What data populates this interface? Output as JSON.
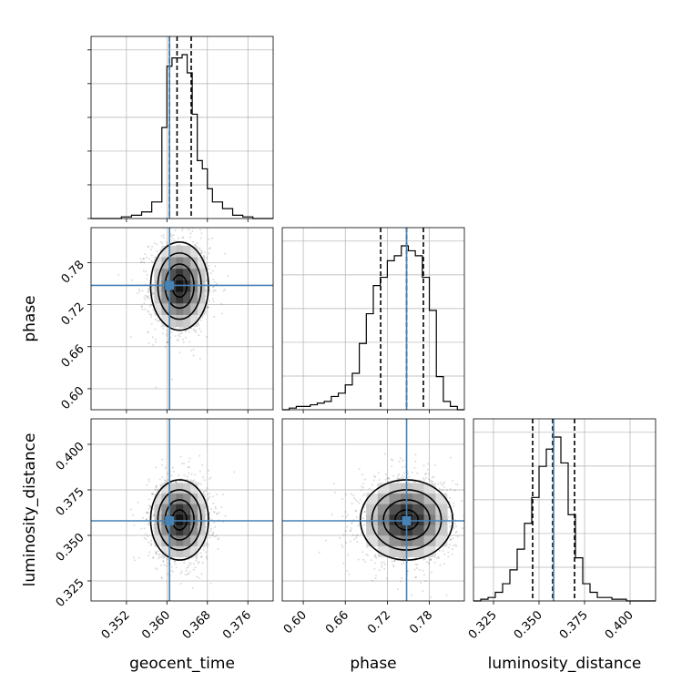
{
  "chart_data": {
    "type": "corner",
    "truth_color": "#4682b4",
    "parameters": [
      {
        "name": "geocent_time",
        "label": "geocent_time",
        "range": [
          0.345,
          0.381
        ],
        "ticks": [
          "0.352",
          "0.360",
          "0.368",
          "0.376"
        ],
        "truth": 0.3605,
        "quantiles": [
          0.3605,
          0.362,
          0.3648
        ],
        "hist": {
          "bins": [
            0.345,
            0.347,
            0.349,
            0.351,
            0.353,
            0.355,
            0.357,
            0.359,
            0.36,
            0.361,
            0.362,
            0.363,
            0.364,
            0.365,
            0.366,
            0.367,
            0.368,
            0.369,
            0.371,
            0.373,
            0.375,
            0.377,
            0.379,
            0.381
          ],
          "counts": [
            0,
            0,
            0,
            0.01,
            0.02,
            0.04,
            0.1,
            0.55,
            0.92,
            0.97,
            0.97,
            0.99,
            0.88,
            0.63,
            0.35,
            0.3,
            0.18,
            0.1,
            0.06,
            0.02,
            0.01,
            0,
            0
          ]
        }
      },
      {
        "name": "phase",
        "label": "phase",
        "range": [
          0.57,
          0.83
        ],
        "ticks": [
          "0.60",
          "0.66",
          "0.72",
          "0.78"
        ],
        "truth": 0.7475,
        "quantiles": [
          0.7105,
          0.7475,
          0.7715
        ],
        "hist": {
          "bins": [
            0.57,
            0.58,
            0.59,
            0.6,
            0.61,
            0.62,
            0.63,
            0.64,
            0.65,
            0.66,
            0.67,
            0.68,
            0.69,
            0.7,
            0.71,
            0.72,
            0.73,
            0.74,
            0.75,
            0.76,
            0.77,
            0.78,
            0.79,
            0.8,
            0.81,
            0.82,
            0.83
          ],
          "counts": [
            0,
            0.01,
            0.02,
            0.02,
            0.03,
            0.04,
            0.05,
            0.08,
            0.1,
            0.15,
            0.22,
            0.4,
            0.58,
            0.75,
            0.8,
            0.9,
            0.93,
            0.99,
            0.96,
            0.93,
            0.8,
            0.6,
            0.2,
            0.05,
            0.02,
            0
          ]
        }
      },
      {
        "name": "luminosity_distance",
        "label": "luminosity_distance",
        "range": [
          0.314,
          0.414
        ],
        "ticks": [
          "0.325",
          "0.350",
          "0.375",
          "0.400"
        ],
        "truth": 0.358,
        "quantiles": [
          0.3465,
          0.3575,
          0.3695
        ],
        "hist": {
          "bins": [
            0.314,
            0.318,
            0.322,
            0.326,
            0.33,
            0.334,
            0.338,
            0.342,
            0.346,
            0.35,
            0.354,
            0.358,
            0.362,
            0.366,
            0.37,
            0.374,
            0.378,
            0.382,
            0.386,
            0.39,
            0.394,
            0.398,
            0.402,
            0.406,
            0.41,
            0.414
          ],
          "counts": [
            0,
            0.01,
            0.02,
            0.05,
            0.1,
            0.18,
            0.3,
            0.45,
            0.6,
            0.78,
            0.88,
            0.95,
            0.8,
            0.5,
            0.25,
            0.1,
            0.05,
            0.02,
            0.02,
            0.01,
            0.01,
            0,
            0,
            0,
            0
          ]
        }
      }
    ],
    "posterior_2d": [
      {
        "x": "geocent_time",
        "y": "phase",
        "center": [
          0.3625,
          0.7465
        ],
        "sd": [
          0.0026,
          0.03
        ],
        "rho": 0
      },
      {
        "x": "geocent_time",
        "y": "luminosity_distance",
        "center": [
          0.3625,
          0.3585
        ],
        "sd": [
          0.0026,
          0.0105
        ],
        "rho": 0
      },
      {
        "x": "phase",
        "y": "luminosity_distance",
        "center": [
          0.7475,
          0.3585
        ],
        "sd": [
          0.03,
          0.0105
        ],
        "rho": 0
      }
    ],
    "contour_levels_sigma": [
      0.5,
      1.0,
      1.5,
      2.0
    ],
    "grid": true,
    "legend": "none"
  }
}
